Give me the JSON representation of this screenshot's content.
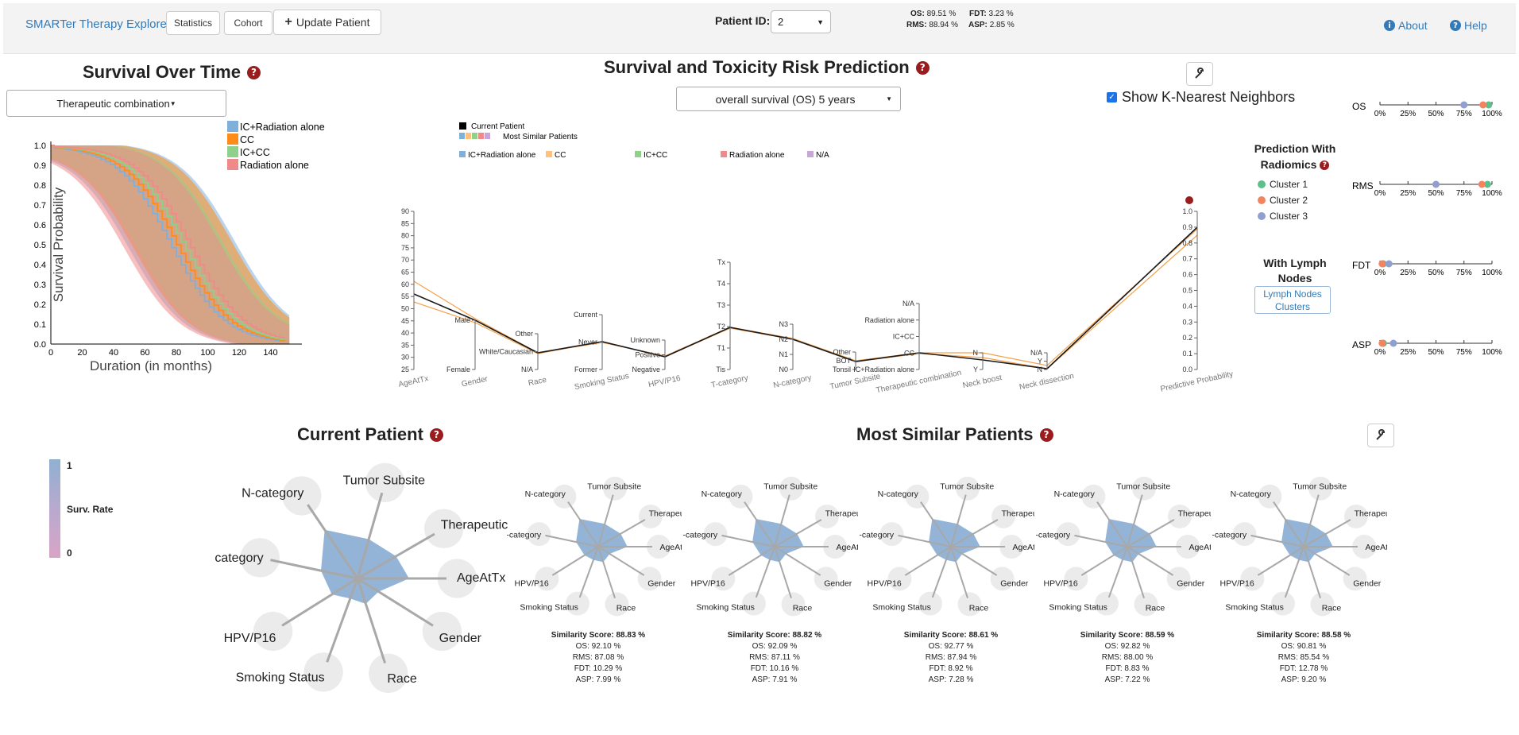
{
  "navbar": {
    "brand": "SMARTer Therapy Explorer",
    "statistics_label": "Statistics",
    "cohort_label": "Cohort",
    "update_label": "Update Patient",
    "patient_id_label": "Patient ID:",
    "patient_id_value": "2",
    "stats": {
      "os_label": "OS:",
      "os_value": "89.51 %",
      "fdt_label": "FDT:",
      "fdt_value": "3.23 %",
      "rms_label": "RMS:",
      "rms_value": "88.94 %",
      "asp_label": "ASP:",
      "asp_value": "2.85 %"
    },
    "about_label": "About",
    "help_label": "Help"
  },
  "survival": {
    "title": "Survival Over Time",
    "dropdown": "Therapeutic combination",
    "legend": [
      "IC+Radiation alone",
      "CC",
      "IC+CC",
      "Radiation alone"
    ],
    "colors": [
      "#7fb0dc",
      "#ff8c1a",
      "#8fd08a",
      "#f08a8a"
    ],
    "ylabel": "Survival Probability",
    "xlabel": "Duration (in months)",
    "yticks": [
      "1.0",
      "0.9",
      "0.8",
      "0.7",
      "0.6",
      "0.5",
      "0.4",
      "0.3",
      "0.2",
      "0.1",
      "0.0"
    ],
    "xticks": [
      "0",
      "20",
      "40",
      "60",
      "80",
      "100",
      "120",
      "140"
    ]
  },
  "prediction": {
    "title": "Survival and Toxicity Risk Prediction",
    "outcome_select": "overall survival (OS) 5 years",
    "knn_label": "Show K-Nearest Neighbors",
    "legend_current": "Current Patient",
    "legend_similar": "Most Similar Patients",
    "legend_groups": [
      "IC+Radiation alone",
      "CC",
      "IC+CC",
      "Radiation alone",
      "N/A"
    ],
    "group_colors": [
      "#7fb0dc",
      "#ffc080",
      "#8fd08a",
      "#f08a8a",
      "#c9a6d8"
    ],
    "axes": [
      {
        "name": "AgeAtTx",
        "ticks": [
          "90",
          "85",
          "80",
          "75",
          "70",
          "65",
          "60",
          "55",
          "50",
          "45",
          "40",
          "35",
          "30",
          "25"
        ]
      },
      {
        "name": "Gender",
        "ticks": [
          "Male",
          "Female"
        ]
      },
      {
        "name": "Race",
        "ticks": [
          "Other",
          "White/Caucasian",
          "N/A"
        ]
      },
      {
        "name": "Smoking Status",
        "ticks": [
          "Current",
          "Never",
          "Former"
        ]
      },
      {
        "name": "HPV/P16",
        "ticks": [
          "Unknown",
          "Positive",
          "Negative"
        ]
      },
      {
        "name": "T-category",
        "ticks": [
          "Tx",
          "T4",
          "T3",
          "T2",
          "T1",
          "Tis"
        ]
      },
      {
        "name": "N-category",
        "ticks": [
          "N3",
          "N2",
          "N1",
          "N0"
        ]
      },
      {
        "name": "Tumor Subsite",
        "ticks": [
          "Other",
          "BOT",
          "Tonsil"
        ]
      },
      {
        "name": "Therapeutic combination",
        "ticks": [
          "N/A",
          "Radiation alone",
          "IC+CC",
          "CC",
          "IC+Radiation alone"
        ]
      },
      {
        "name": "Neck boost",
        "ticks": [
          "N",
          "Y"
        ]
      },
      {
        "name": "Neck dissection",
        "ticks": [
          "N/A",
          "Y",
          "N"
        ]
      },
      {
        "name": "Predictive Probability",
        "ticks": [
          "1.0",
          "0.9",
          "0.8",
          "0.7",
          "0.6",
          "0.5",
          "0.4",
          "0.3",
          "0.2",
          "0.1",
          "0.0"
        ]
      }
    ]
  },
  "radiomics": {
    "title": "Prediction With Radiomics",
    "clusters": [
      "Cluster 1",
      "Cluster 2",
      "Cluster 3"
    ],
    "cluster_colors": [
      "#5cc08b",
      "#f4845f",
      "#8fa0d0"
    ],
    "lymph_title": "With Lymph Nodes",
    "lymph_button": "Lymph Nodes Clusters"
  },
  "dotplots": {
    "ticks": [
      "0%",
      "25%",
      "50%",
      "75%",
      "100%"
    ],
    "rows": [
      {
        "label": "OS",
        "values": [
          0.97,
          0.92,
          0.75
        ]
      },
      {
        "label": "RMS",
        "values": [
          0.96,
          0.91,
          0.5
        ]
      },
      {
        "label": "FDT",
        "values": [
          0.03,
          0.02,
          0.08
        ]
      },
      {
        "label": "ASP",
        "values": [
          0.03,
          0.02,
          0.12
        ]
      }
    ]
  },
  "current_patient": {
    "title": "Current Patient",
    "scale_top": "1",
    "scale_label": "Surv. Rate",
    "scale_bottom": "0",
    "axes": [
      "AgeAtTx",
      "Gender",
      "Race",
      "Smoking Status",
      "HPV/P16",
      "T-category",
      "N-category",
      "Tumor Subsite",
      "Therapeutic combinati"
    ]
  },
  "similar": {
    "title": "Most Similar Patients",
    "axes": [
      "AgeAtTx",
      "Gender",
      "Race",
      "Smoking Status",
      "HPV/P16",
      "T-category",
      "N-category",
      "Tumor Subsite",
      "Therapeutic combina"
    ],
    "patients": [
      {
        "score": "Similarity Score: 88.83 %",
        "os": "OS: 92.10 %",
        "rms": "RMS: 87.08 %",
        "fdt": "FDT: 10.29 %",
        "asp": "ASP: 7.99 %"
      },
      {
        "score": "Similarity Score: 88.82 %",
        "os": "OS: 92.09 %",
        "rms": "RMS: 87.11 %",
        "fdt": "FDT: 10.16 %",
        "asp": "ASP: 7.91 %"
      },
      {
        "score": "Similarity Score: 88.61 %",
        "os": "OS: 92.77 %",
        "rms": "RMS: 87.94 %",
        "fdt": "FDT: 8.92 %",
        "asp": "ASP: 7.28 %"
      },
      {
        "score": "Similarity Score: 88.59 %",
        "os": "OS: 92.82 %",
        "rms": "RMS: 88.00 %",
        "fdt": "FDT: 8.83 %",
        "asp": "ASP: 7.22 %"
      },
      {
        "score": "Similarity Score: 88.58 %",
        "os": "OS: 90.81 %",
        "rms": "RMS: 85.54 %",
        "fdt": "FDT: 12.78 %",
        "asp": "ASP: 9.20 %"
      }
    ]
  }
}
